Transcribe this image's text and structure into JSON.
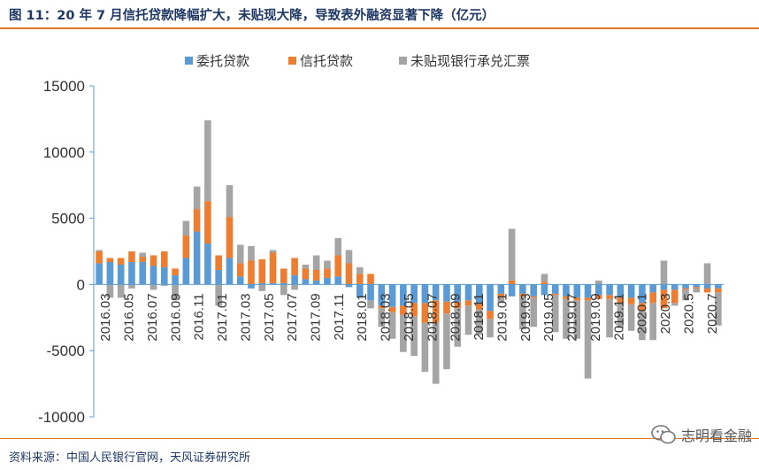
{
  "title": "图 11：20 年 7 月信托贷款降幅扩大，未贴现大降，导致表外融资显著下降（亿元）",
  "source": "资料来源：中国人民银行官网，天风证券研究所",
  "watermark": "志明看金融",
  "watermark_icon": "wechat-icon",
  "colors": {
    "entrusted": "#5b9bd5",
    "trust": "#ed7d31",
    "undiscounted": "#a5a5a5",
    "axis": "#5b9bd5",
    "title": "#1f3864",
    "rule": "#e07a2a"
  },
  "chart_data": {
    "type": "bar",
    "stacked": true,
    "ylim": [
      -10000,
      15000
    ],
    "yticks": [
      15000,
      10000,
      5000,
      0,
      -5000,
      -10000
    ],
    "legend_position": "top-center",
    "grid": false,
    "tick_labels": [
      "2016.03",
      "2016.05",
      "2016.07",
      "2016.09",
      "2016.11",
      "2017.01",
      "2017.03",
      "2017.05",
      "2017.07",
      "2017.09",
      "2017.11",
      "2018.01",
      "2018.03",
      "2018.05",
      "2018.07",
      "2018.09",
      "2018.11",
      "2019.01",
      "2019.03",
      "2019.05",
      "2019.07",
      "2019.09",
      "2019.11",
      "2020.1",
      "2020.3",
      "2020.5",
      "2020.7"
    ],
    "series": [
      {
        "name": "委托贷款",
        "color": "#5b9bd5",
        "values": [
          1600,
          1700,
          1500,
          1700,
          1700,
          1400,
          1300,
          700,
          2000,
          4000,
          3100,
          1100,
          2000,
          600,
          -300,
          100,
          100,
          100,
          700,
          400,
          300,
          500,
          600,
          -200,
          -1000,
          -1200,
          -1600,
          -1700,
          -1600,
          -1400,
          -1400,
          -1200,
          -1300,
          -1300,
          -1200,
          -1400,
          -2000,
          -700,
          -900,
          -700,
          -900,
          -800,
          -700,
          -900,
          -1000,
          -1000,
          -800,
          -800,
          -1000,
          -1000,
          -1400,
          -600,
          -400,
          -400,
          -300,
          -200,
          -300,
          -300
        ]
      },
      {
        "name": "信托贷款",
        "color": "#ed7d31",
        "values": [
          900,
          300,
          500,
          800,
          400,
          800,
          1200,
          500,
          1700,
          1700,
          3200,
          1100,
          3100,
          1000,
          1800,
          1800,
          2300,
          1100,
          1300,
          800,
          800,
          700,
          1600,
          1600,
          800,
          800,
          -200,
          -400,
          -700,
          -1000,
          -1500,
          -1700,
          -900,
          -500,
          -400,
          -500,
          -600,
          -300,
          300,
          -200,
          -100,
          200,
          -100,
          -200,
          -200,
          -200,
          -300,
          -300,
          -400,
          -500,
          -600,
          -800,
          -1400,
          -1000,
          -100,
          -100,
          -300,
          -300
        ]
      },
      {
        "name": "未贴现银行承兑汇票",
        "color": "#a5a5a5",
        "values": [
          100,
          -1000,
          -1000,
          -300,
          300,
          -400,
          -100,
          -1200,
          1100,
          1700,
          6100,
          -1600,
          2400,
          1400,
          1100,
          -500,
          200,
          -800,
          -400,
          300,
          1100,
          600,
          1300,
          1000,
          500,
          -600,
          -1400,
          -2000,
          -2800,
          -3000,
          -3700,
          -4600,
          -4200,
          -2900,
          -2200,
          -1900,
          -1400,
          -400,
          3900,
          -2500,
          -2200,
          600,
          -2800,
          -3000,
          -2900,
          -5900,
          300,
          -2900,
          -1900,
          -2000,
          -2200,
          -2800,
          1800,
          -200,
          -800,
          -300,
          1600,
          -2500
        ]
      }
    ]
  }
}
